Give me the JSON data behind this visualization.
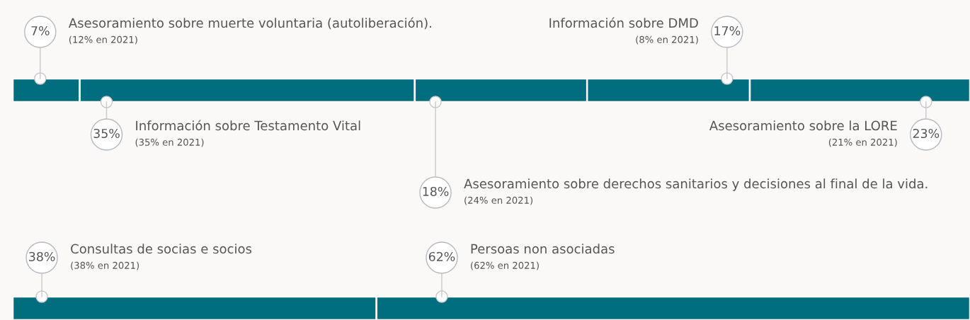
{
  "chart_data": [
    {
      "type": "bar",
      "orientation": "horizontal",
      "stacked": true,
      "categories": [
        null
      ],
      "series": [
        {
          "color": "#006e7e",
          "values": [
            7
          ],
          "value_labels": [
            "7%"
          ]
        },
        {
          "color": "#006e7e",
          "values": [
            35
          ],
          "value_labels": [
            "35%"
          ]
        },
        {
          "color": "#006e7e",
          "values": [
            18
          ],
          "value_labels": [
            "18%"
          ]
        },
        {
          "color": "#006e7e",
          "values": [
            17
          ],
          "value_labels": [
            "17%"
          ]
        },
        {
          "color": "#006e7e",
          "values": [
            23
          ],
          "value_labels": [
            "23%"
          ]
        }
      ],
      "annotations": [
        "Asesoramiento sobre muerte voluntaria (autoliberación).",
        "(12% en 2021)",
        "Información sobre Testamento Vital",
        "(35% en 2021)",
        "Asesoramiento sobre derechos sanitarios y decisiones al final de la vida.",
        "(24% en 2021)",
        "Información sobre DMD",
        "(8% en 2021)",
        "Asesoramiento sobre la LORE",
        "(21% en 2021)"
      ]
    },
    {
      "type": "bar",
      "orientation": "horizontal",
      "stacked": true,
      "categories": [
        null
      ],
      "series": [
        {
          "color": "#006e7e",
          "values": [
            38
          ],
          "value_labels": [
            "38%"
          ]
        },
        {
          "color": "#006e7e",
          "values": [
            62
          ],
          "value_labels": [
            "62%"
          ]
        }
      ],
      "annotations": [
        "Consultas de socias e socios",
        "(38% en 2021)",
        "Persoas non asociadas",
        "(62% en 2021)"
      ]
    }
  ]
}
